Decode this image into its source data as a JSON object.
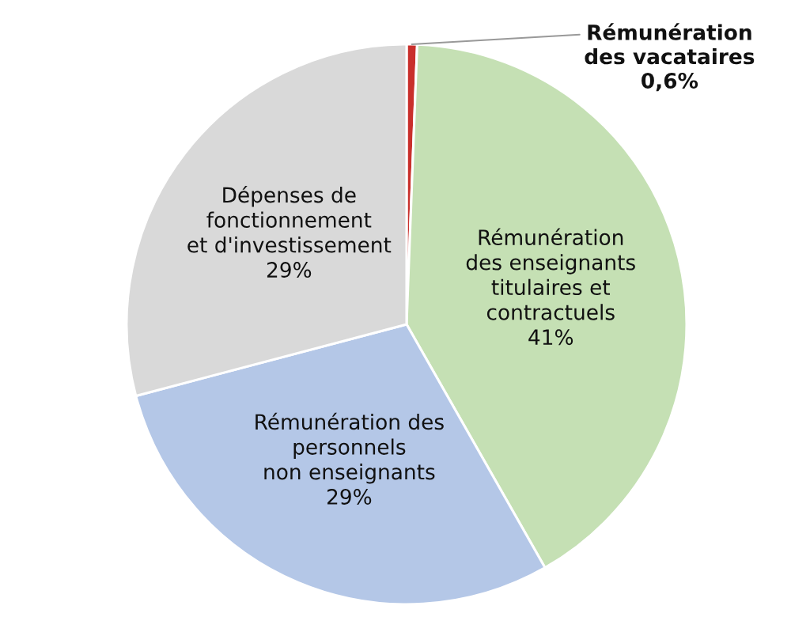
{
  "chart_data": {
    "type": "pie",
    "categories": [
      "Rémunération\ndes vacataires",
      "Rémunération\ndes enseignants\ntitulaires et\ncontractuels",
      "Rémunération des\npersonnels\nnon enseignants",
      "Dépenses de\nfonctionnement\net d'investissement"
    ],
    "values": [
      0.6,
      41,
      29,
      29
    ],
    "value_labels": [
      "0,6%",
      "41%",
      "29%",
      "29%"
    ],
    "colors": [
      "#c9302c",
      "#c5e0b4",
      "#b4c7e7",
      "#d9d9d9"
    ]
  }
}
